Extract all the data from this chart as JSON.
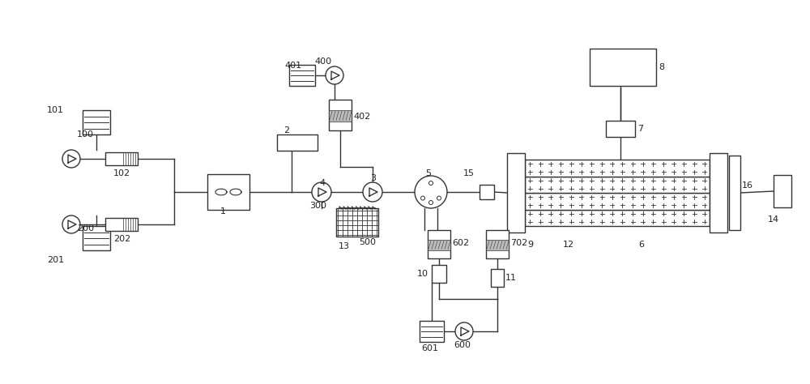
{
  "line_color": "#333333",
  "fig_width": 10.0,
  "fig_height": 4.74,
  "dpi": 100
}
